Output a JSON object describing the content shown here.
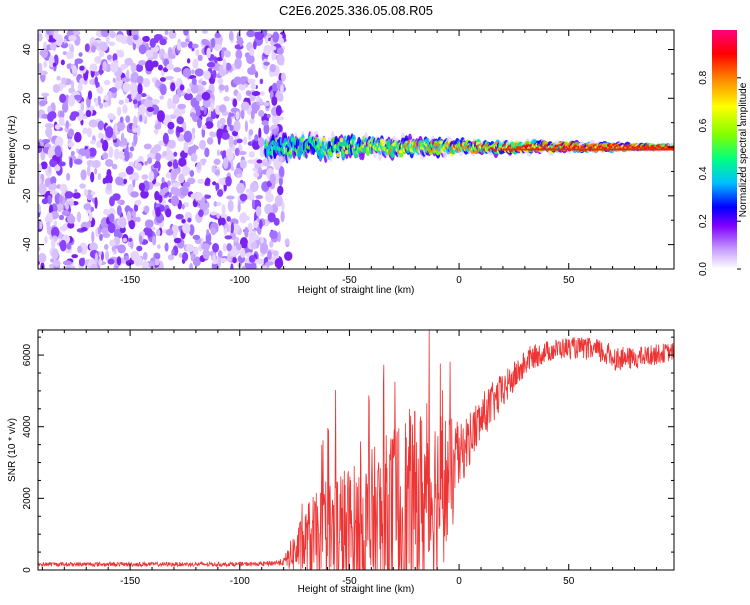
{
  "chart_data": [
    {
      "type": "heatmap",
      "title": "C2E6.2025.336.05.08.R05",
      "xlabel": "Height of straight line (km)",
      "ylabel": "Frequency (Hz)",
      "xlim": [
        -192,
        98
      ],
      "ylim": [
        -50,
        48
      ],
      "xticks": [
        -150,
        -100,
        -50,
        0,
        50
      ],
      "yticks": [
        -40,
        -20,
        0,
        20,
        40
      ],
      "colorbar": {
        "label": "Normalized spectral amplitude",
        "ticks": [
          0.0,
          0.2,
          0.4,
          0.6,
          0.8
        ],
        "tick_labels": [
          "0.0",
          "0.2",
          "0.4",
          "0.6",
          "0.8"
        ],
        "range": [
          0,
          1
        ],
        "colors": [
          "#ffffff",
          "#c8a0ff",
          "#8000ff",
          "#0000ff",
          "#00c0ff",
          "#00ff80",
          "#80ff00",
          "#ffff00",
          "#ff8000",
          "#ff0000",
          "#ff0080"
        ]
      },
      "regions": {
        "noise_x_range": [
          -192,
          -80
        ],
        "signal_band_center_hz": 0,
        "signal_band_halfwidth_hz": [
          8,
          2
        ],
        "signal_x_range": [
          -88,
          98
        ]
      }
    },
    {
      "type": "line",
      "xlabel": "Height of straight line (km)",
      "ylabel": "SNR (10 * v/v)",
      "xlim": [
        -192,
        98
      ],
      "ylim": [
        0,
        6700
      ],
      "xticks": [
        -150,
        -100,
        -50,
        0,
        50
      ],
      "yticks": [
        0,
        2000,
        4000,
        6000
      ],
      "color": "#ee3333",
      "series": [
        {
          "name": "SNR",
          "x": [
            -192,
            -170,
            -150,
            -130,
            -110,
            -90,
            -80,
            -76,
            -72,
            -68,
            -64,
            -60,
            -56,
            -52,
            -48,
            -44,
            -40,
            -36,
            -32,
            -28,
            -24,
            -20,
            -16,
            -12,
            -8,
            -4,
            0,
            4,
            8,
            12,
            16,
            20,
            24,
            28,
            32,
            40,
            48,
            56,
            64,
            72,
            80,
            88,
            98
          ],
          "mean": [
            160,
            160,
            160,
            160,
            160,
            170,
            220,
            450,
            650,
            850,
            800,
            900,
            850,
            900,
            1000,
            1000,
            1100,
            1200,
            1300,
            1500,
            1700,
            1900,
            2000,
            2100,
            2300,
            2500,
            3100,
            3600,
            4000,
            4400,
            4700,
            5000,
            5300,
            5600,
            5900,
            6100,
            6200,
            6200,
            6100,
            5900,
            5900,
            6000,
            6100
          ],
          "spread": [
            60,
            60,
            60,
            60,
            60,
            60,
            100,
            500,
            800,
            1200,
            1400,
            1600,
            2200,
            2000,
            2000,
            2200,
            2300,
            2400,
            2600,
            2800,
            2800,
            2600,
            2600,
            2500,
            2300,
            1800,
            900,
            800,
            700,
            650,
            600,
            500,
            450,
            400,
            350,
            300,
            300,
            300,
            350,
            350,
            300,
            300,
            250
          ]
        }
      ]
    }
  ]
}
